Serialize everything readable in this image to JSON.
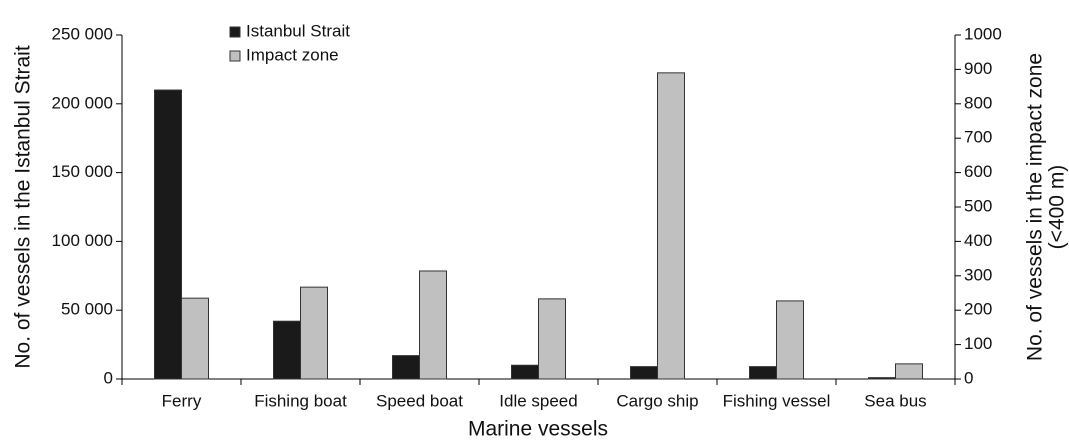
{
  "chart_data": {
    "type": "bar",
    "xlabel": "Marine vessels",
    "ylabel": "No. of vessels in the Istanbul Strait",
    "y2label": [
      "No. of vessels in the impact zone",
      "(<400 m)"
    ],
    "categories": [
      "Ferry",
      "Fishing boat",
      "Speed boat",
      "Idle speed",
      "Cargo ship",
      "Fishing vessel",
      "Sea bus"
    ],
    "series": [
      {
        "name": "Istanbul Strait",
        "color": "#1a1a1a",
        "values": [
          210000,
          42000,
          17000,
          10000,
          9000,
          9000,
          1000
        ]
      },
      {
        "name": "Impact zone",
        "color": "#c0c0c0",
        "axis": "y2",
        "values": [
          235,
          267,
          314,
          233,
          890,
          227,
          44
        ]
      }
    ],
    "ylim": [
      0,
      250000
    ],
    "yticks": [
      0,
      {
        "value": 50000,
        "label": "50 000"
      },
      {
        "value": 100000,
        "label": "100 000"
      },
      {
        "value": 150000,
        "label": "150 000"
      },
      {
        "value": 200000,
        "label": "200 000"
      },
      {
        "value": 250000,
        "label": "250 000"
      }
    ],
    "y2lim": [
      0,
      1000
    ],
    "y2ticks": [
      0,
      100,
      200,
      300,
      400,
      500,
      600,
      700,
      800,
      900,
      1000
    ],
    "legend": "upper left",
    "grid": false
  }
}
